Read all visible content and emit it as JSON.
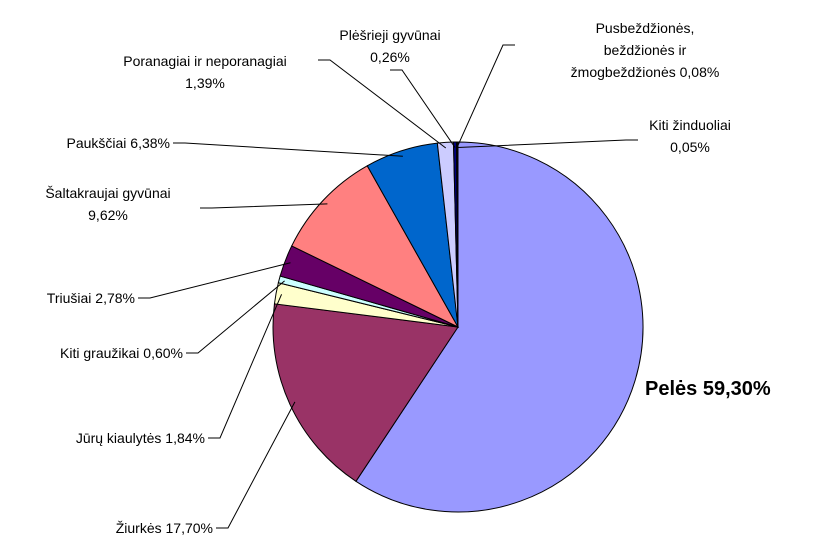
{
  "chart_data": {
    "type": "pie",
    "categories": [
      "Pelės",
      "Žiurkės",
      "Jūrų kiaulytės",
      "Kiti graužikai",
      "Triušiai",
      "Šaltakraujai gyvūnai",
      "Paukščiai",
      "Poranagiai ir neporanagiai",
      "Plėšrieji gyvūnai",
      "Pusbeždžionės, beždžionės ir žmogbeždžionės",
      "Kiti žinduoliai"
    ],
    "values": [
      59.3,
      17.7,
      1.84,
      0.6,
      2.78,
      9.62,
      6.38,
      1.39,
      0.26,
      0.08,
      0.05
    ],
    "value_labels": [
      "59,30%",
      "17,70%",
      "1,84%",
      "0,60%",
      "2,78%",
      "9,62%",
      "6,38%",
      "1,39%",
      "0,26%",
      "0,08%",
      "0,05%"
    ],
    "colors": [
      "#9999ff",
      "#993366",
      "#ffffcc",
      "#ccffff",
      "#660066",
      "#ff8080",
      "#0066cc",
      "#ccccff",
      "#000080",
      "#ff00ff",
      "#ffff00"
    ]
  }
}
